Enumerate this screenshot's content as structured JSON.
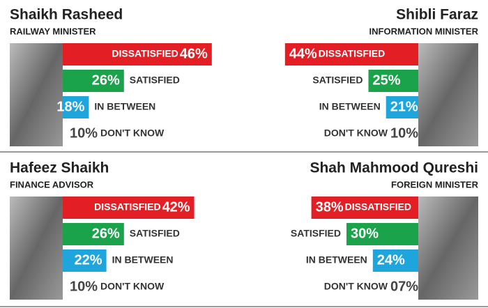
{
  "chart_data": [
    {
      "type": "bar",
      "orientation": "horizontal",
      "title": "Shaikh Rasheed",
      "subtitle": "RAILWAY MINISTER",
      "categories": [
        "DISSATISFIED",
        "SATISFIED",
        "IN BETWEEN",
        "DON'T KNOW"
      ],
      "values": [
        46,
        26,
        18,
        10
      ],
      "value_labels": [
        "46%",
        "26%",
        "18%",
        "10%"
      ],
      "colors": [
        "#e31e24",
        "#1aa34a",
        "#1ea5dc",
        "#ffffff"
      ]
    },
    {
      "type": "bar",
      "orientation": "horizontal",
      "title": "Shibli Faraz",
      "subtitle": "INFORMATION MINISTER",
      "categories": [
        "DISSATISFIED",
        "SATISFIED",
        "IN BETWEEN",
        "DON'T KNOW"
      ],
      "values": [
        44,
        25,
        21,
        10
      ],
      "value_labels": [
        "44%",
        "25%",
        "21%",
        "10%"
      ],
      "colors": [
        "#e31e24",
        "#1aa34a",
        "#1ea5dc",
        "#ffffff"
      ]
    },
    {
      "type": "bar",
      "orientation": "horizontal",
      "title": "Hafeez Shaikh",
      "subtitle": "FINANCE ADVISOR",
      "categories": [
        "DISSATISFIED",
        "SATISFIED",
        "IN BETWEEN",
        "DON'T KNOW"
      ],
      "values": [
        42,
        26,
        22,
        10
      ],
      "value_labels": [
        "42%",
        "26%",
        "22%",
        "10%"
      ],
      "colors": [
        "#e31e24",
        "#1aa34a",
        "#1ea5dc",
        "#ffffff"
      ]
    },
    {
      "type": "bar",
      "orientation": "horizontal",
      "title": "Shah Mahmood Qureshi",
      "subtitle": "FOREIGN MINISTER",
      "categories": [
        "DISSATISFIED",
        "SATISFIED",
        "IN BETWEEN",
        "DON'T KNOW"
      ],
      "values": [
        38,
        30,
        24,
        7
      ],
      "value_labels": [
        "38%",
        "30%",
        "24%",
        "07%"
      ],
      "colors": [
        "#e31e24",
        "#1aa34a",
        "#1ea5dc",
        "#ffffff"
      ]
    }
  ]
}
